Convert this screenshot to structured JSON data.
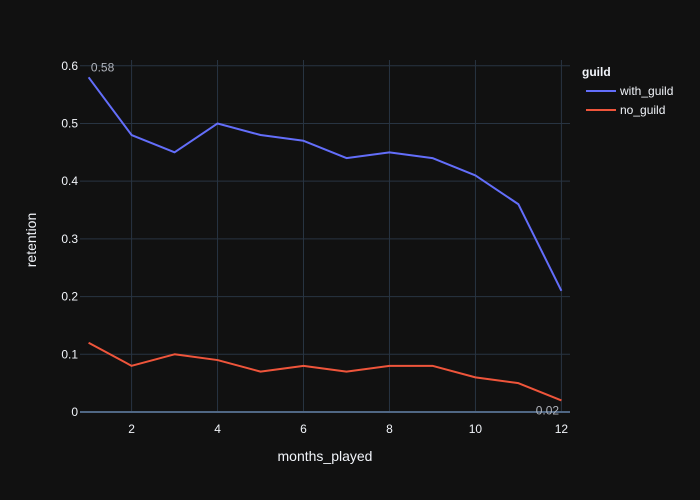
{
  "colors": {
    "background": "#111111",
    "grid": "#283442",
    "zeroline": "#506784",
    "text": "#f2f5fa",
    "annotation": "#b0b4bc"
  },
  "chart_data": {
    "type": "line",
    "xlabel": "months_played",
    "ylabel": "retention",
    "legend_title": "guild",
    "legend_position": "top-right",
    "grid": true,
    "xlim": [
      0.8,
      12.2
    ],
    "ylim": [
      0,
      0.61
    ],
    "x_ticks": [
      2,
      4,
      6,
      8,
      10,
      12
    ],
    "y_ticks": [
      0,
      0.1,
      0.2,
      0.3,
      0.4,
      0.5,
      0.6
    ],
    "x": [
      1,
      2,
      3,
      4,
      5,
      6,
      7,
      8,
      9,
      10,
      11,
      12
    ],
    "series": [
      {
        "name": "with_guild",
        "color": "#636efa",
        "values": [
          0.58,
          0.48,
          0.45,
          0.5,
          0.48,
          0.47,
          0.44,
          0.45,
          0.44,
          0.41,
          0.36,
          0.21
        ]
      },
      {
        "name": "no_guild",
        "color": "#ef553b",
        "values": [
          0.12,
          0.08,
          0.1,
          0.09,
          0.07,
          0.08,
          0.07,
          0.08,
          0.08,
          0.06,
          0.05,
          0.02
        ]
      }
    ],
    "annotations": [
      {
        "text": "0.58",
        "series": 0,
        "index": 0,
        "anchor": "above"
      },
      {
        "text": "0.02",
        "series": 1,
        "index": 11,
        "anchor": "below"
      }
    ]
  }
}
